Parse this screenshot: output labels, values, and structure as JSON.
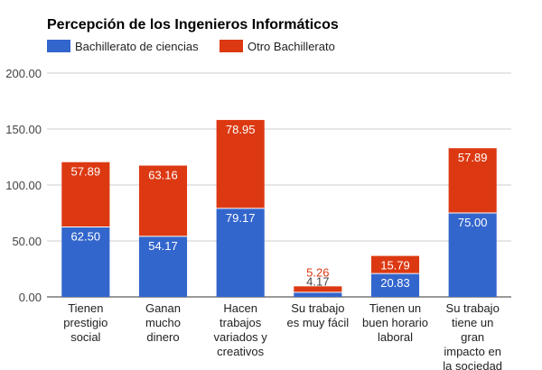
{
  "chart_data": {
    "type": "bar",
    "stacked": true,
    "title": "Percepción de los Ingenieros Informáticos",
    "xlabel": "",
    "ylabel": "",
    "ylim": [
      0,
      200
    ],
    "yticks": [
      "0.00",
      "50.00",
      "100.00",
      "150.00",
      "200.00"
    ],
    "grid": true,
    "legend_position": "top-left",
    "categories": [
      [
        "Tienen",
        "prestigio",
        "social"
      ],
      [
        "Ganan",
        "mucho",
        "dinero"
      ],
      [
        "Hacen",
        "trabajos",
        "variados y",
        "creativos"
      ],
      [
        "Su trabajo",
        "es muy fácil"
      ],
      [
        "Tienen un",
        "buen horario",
        "laboral"
      ],
      [
        "Su trabajo",
        "tiene un",
        "gran",
        "impacto en",
        "la sociedad"
      ]
    ],
    "series": [
      {
        "name": "Bachillerato de ciencias",
        "color": "#3366cc",
        "values": [
          62.5,
          54.17,
          79.17,
          4.17,
          20.83,
          75.0
        ],
        "labels": [
          "62.50",
          "54.17",
          "79.17",
          "4.17",
          "20.83",
          "75.00"
        ]
      },
      {
        "name": "Otro Bachillerato",
        "color": "#dc3912",
        "values": [
          57.89,
          63.16,
          78.95,
          5.26,
          15.79,
          57.89
        ],
        "labels": [
          "57.89",
          "63.16",
          "78.95",
          "5.26",
          "15.79",
          "57.89"
        ]
      }
    ]
  }
}
